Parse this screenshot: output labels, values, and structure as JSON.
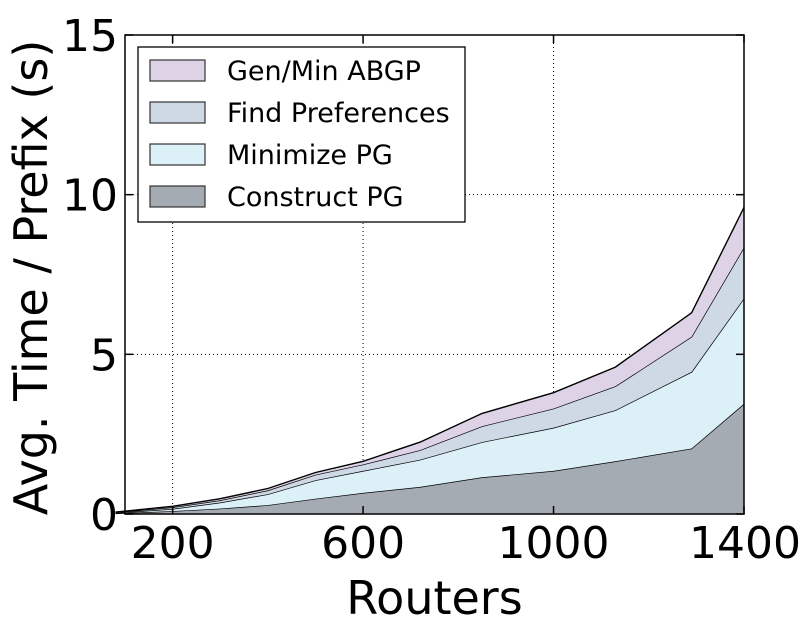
{
  "chart_data": {
    "type": "area",
    "stacked": true,
    "xlabel": "Routers",
    "ylabel": "Avg. Time / Prefix (s)",
    "xlim": [
      100,
      1400
    ],
    "ylim": [
      0,
      15
    ],
    "xticks": [
      200,
      600,
      1000,
      1400
    ],
    "yticks": [
      0,
      5,
      10,
      15
    ],
    "grid": true,
    "legend_position": "top-left",
    "x": [
      80,
      200,
      300,
      400,
      500,
      600,
      720,
      850,
      1000,
      1130,
      1290,
      1400
    ],
    "series": [
      {
        "name": "Construct PG",
        "color": "#a5abb3",
        "values": [
          0.02,
          0.09,
          0.17,
          0.28,
          0.48,
          0.66,
          0.85,
          1.15,
          1.35,
          1.65,
          2.05,
          3.45
        ]
      },
      {
        "name": "Minimize PG",
        "color": "#dcf0f8",
        "values": [
          0.01,
          0.07,
          0.19,
          0.34,
          0.58,
          0.69,
          0.85,
          1.1,
          1.35,
          1.6,
          2.4,
          3.3
        ]
      },
      {
        "name": "Find Preferences",
        "color": "#cfd9e5",
        "values": [
          0.02,
          0.05,
          0.07,
          0.12,
          0.17,
          0.2,
          0.3,
          0.5,
          0.6,
          0.75,
          1.1,
          1.6
        ]
      },
      {
        "name": "Gen/Min ABGP",
        "color": "#ddd2e6",
        "values": [
          0.01,
          0.03,
          0.05,
          0.06,
          0.07,
          0.1,
          0.25,
          0.4,
          0.5,
          0.6,
          0.75,
          1.25
        ]
      }
    ],
    "legend_order": [
      "Gen/Min ABGP",
      "Find Preferences",
      "Minimize PG",
      "Construct PG"
    ]
  }
}
